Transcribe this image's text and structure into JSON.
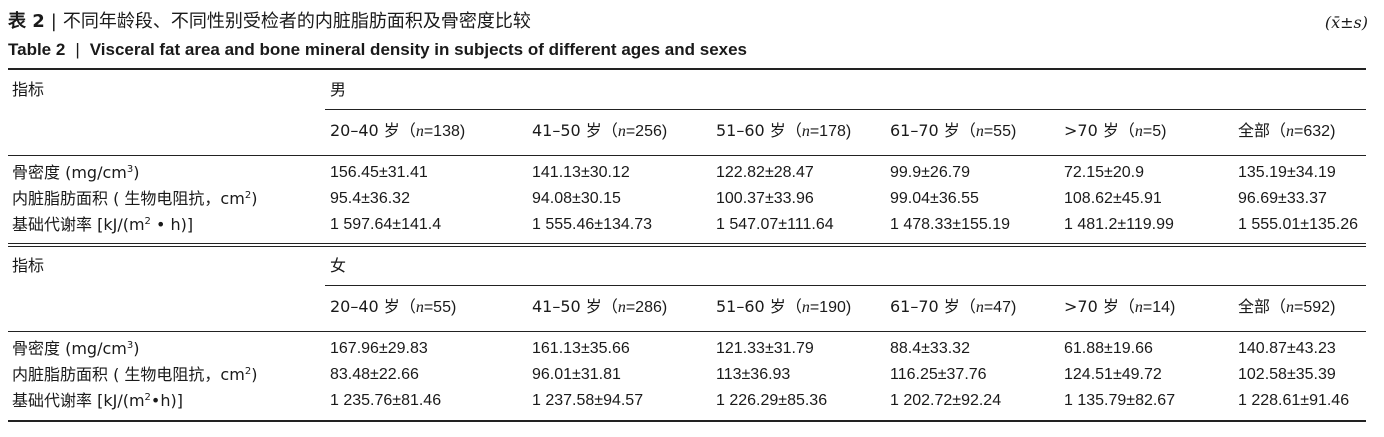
{
  "title": {
    "label_cn": "表 2",
    "text_cn": "不同年龄段、不同性别受检者的内脏脂肪面积及骨密度比较",
    "label_en": "Table 2",
    "text_en": "Visceral fat area and bone mineral density in subjects of different ages and sexes",
    "stat_note": "(x̄±s)",
    "separator": "|"
  },
  "sections": [
    {
      "index_label": "指标",
      "sex": "男",
      "groups": [
        {
          "age": "20–40 岁",
          "n": "138"
        },
        {
          "age": "41–50 岁",
          "n": "256"
        },
        {
          "age": "51–60 岁",
          "n": "178"
        },
        {
          "age": "61–70 岁",
          "n": "55"
        },
        {
          "age": ">70 岁",
          "n": "5"
        },
        {
          "age": "全部",
          "n": "632"
        }
      ],
      "rows": [
        {
          "label": "骨密度 (mg/cm",
          "sup": "3",
          "tail": ")",
          "values": [
            "156.45±31.41",
            "141.13±30.12",
            "122.82±28.47",
            "99.9±26.79",
            "72.15±20.9",
            "135.19±34.19"
          ]
        },
        {
          "label": "内脏脂肪面积 ( 生物电阻抗，cm",
          "sup": "2",
          "tail": ")",
          "values": [
            "95.4±36.32",
            "94.08±30.15",
            "100.37±33.96",
            "99.04±36.55",
            "108.62±45.91",
            "96.69±33.37"
          ]
        },
        {
          "label": "基础代谢率 [kJ/(m",
          "sup": "2",
          "tail": " • h)]",
          "values": [
            "1 597.64±141.4",
            "1 555.46±134.73",
            "1 547.07±111.64",
            "1 478.33±155.19",
            "1 481.2±119.99",
            "1 555.01±135.26"
          ]
        }
      ]
    },
    {
      "index_label": "指标",
      "sex": "女",
      "groups": [
        {
          "age": "20–40 岁",
          "n": "55"
        },
        {
          "age": "41–50 岁",
          "n": "286"
        },
        {
          "age": "51–60 岁",
          "n": "190"
        },
        {
          "age": "61–70 岁",
          "n": "47"
        },
        {
          "age": ">70 岁",
          "n": "14"
        },
        {
          "age": "全部",
          "n": "592"
        }
      ],
      "rows": [
        {
          "label": "骨密度 (mg/cm",
          "sup": "3",
          "tail": ")",
          "values": [
            "167.96±29.83",
            "161.13±35.66",
            "121.33±31.79",
            "88.4±33.32",
            "61.88±19.66",
            "140.87±43.23"
          ]
        },
        {
          "label": "内脏脂肪面积 ( 生物电阻抗，cm",
          "sup": "2",
          "tail": ")",
          "values": [
            "83.48±22.66",
            "96.01±31.81",
            "113±36.93",
            "116.25±37.76",
            "124.51±49.72",
            "102.58±35.39"
          ]
        },
        {
          "label": "基础代谢率 [kJ/(m",
          "sup": "2",
          "tail": "•h)]",
          "values": [
            "1 235.76±81.46",
            "1 237.58±94.57",
            "1 226.29±85.36",
            "1 202.72±92.24",
            "1 135.79±82.67",
            "1 228.61±91.46"
          ]
        }
      ]
    }
  ]
}
